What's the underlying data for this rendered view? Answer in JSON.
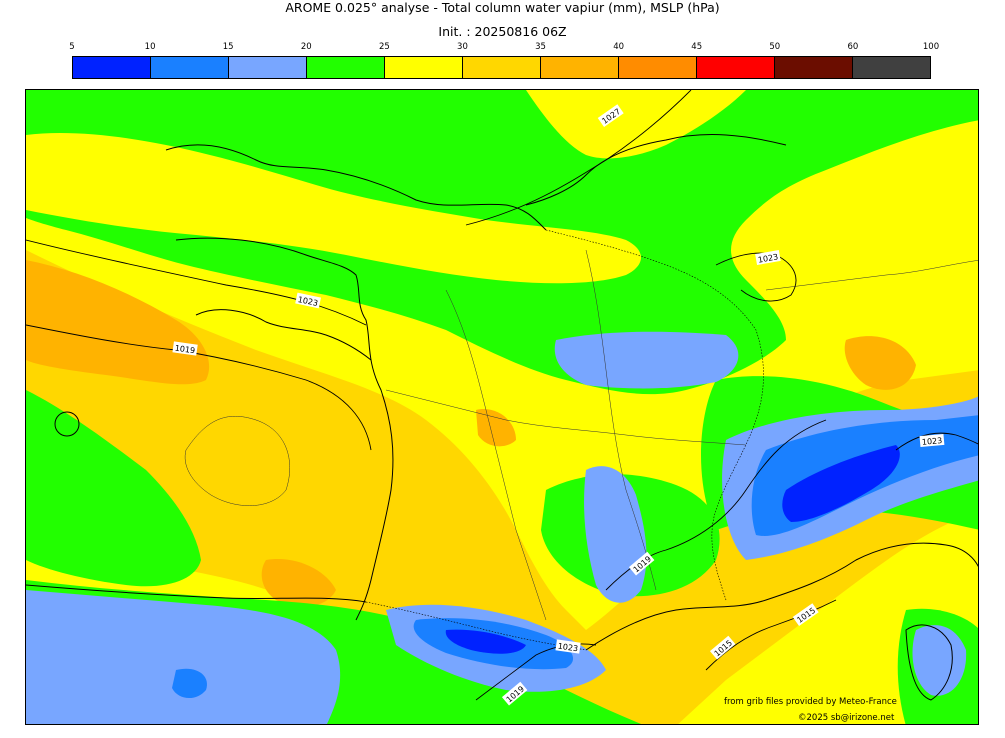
{
  "title": "AROME 0.025° analyse - Total column water vapiur (mm), MSLP (hPa)",
  "subtitle": "Init. : 20250816 06Z",
  "colorbar": {
    "ticks": [
      "5",
      "10",
      "15",
      "20",
      "25",
      "30",
      "35",
      "40",
      "45",
      "50",
      "60",
      "100"
    ],
    "colors": [
      "#0022ff",
      "#1a80ff",
      "#78a6ff",
      "#22ff00",
      "#ffff00",
      "#ffd700",
      "#ffb300",
      "#ff8c00",
      "#ff0000",
      "#6b0d00",
      "#404040"
    ]
  },
  "isobars": [
    {
      "label": "1027"
    },
    {
      "label": "1023"
    },
    {
      "label": "1023"
    },
    {
      "label": "1019"
    },
    {
      "label": "1023"
    },
    {
      "label": "1019"
    },
    {
      "label": "1015"
    },
    {
      "label": "1023"
    },
    {
      "label": "1015"
    },
    {
      "label": "1019"
    }
  ],
  "credits": {
    "source": "from grib files provided by Meteo-France",
    "copyright": "©2025 sb@irizone.net"
  }
}
